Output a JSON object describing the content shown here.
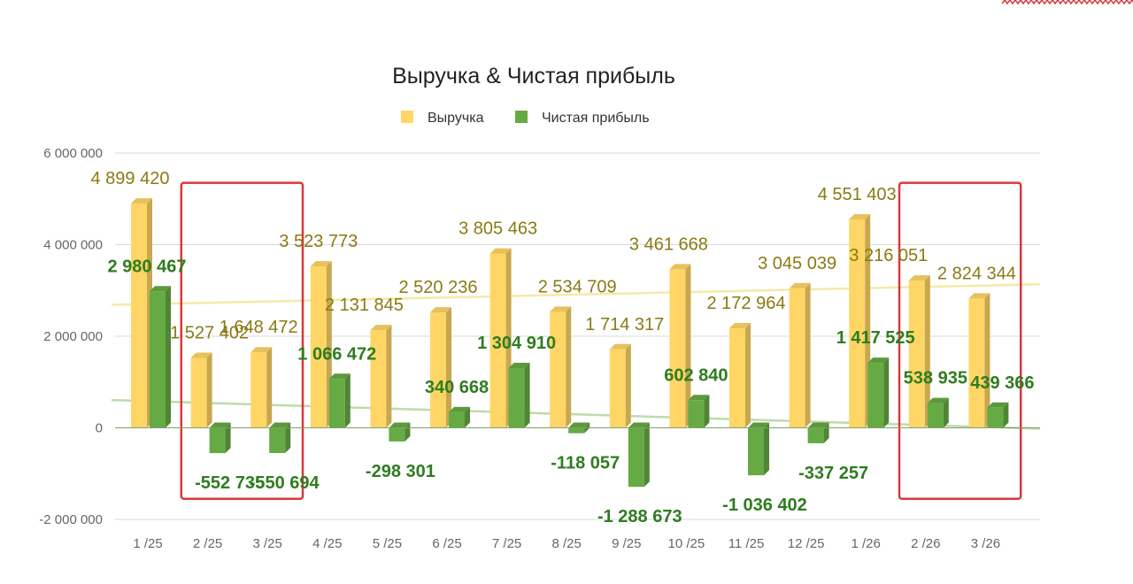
{
  "chart_data": {
    "type": "bar",
    "title": "Выручка & Чистая прибыль",
    "categories": [
      "1 /25",
      "2 /25",
      "3 /25",
      "4 /25",
      "5 /25",
      "6 /25",
      "7 /25",
      "8 /25",
      "9 /25",
      "10 /25",
      "11 /25",
      "12 /25",
      "1 /26",
      "2 /26",
      "3 /26"
    ],
    "series": [
      {
        "name": "Выручка",
        "color": "#ffd666",
        "values": [
          4899420,
          1527402,
          1648472,
          3523773,
          2131845,
          2520236,
          3805463,
          2534709,
          1714317,
          3461668,
          2172964,
          3045039,
          4551403,
          3216051,
          2824344
        ],
        "labels": [
          "4 899 420",
          "1 527 402",
          "1 648 472",
          "3 523 773",
          "2 131 845",
          "2 520 236",
          "3 805 463",
          "2 534 709",
          "1 714 317",
          "3 461 668",
          "2 172 964",
          "3 045 039",
          "4 551 403",
          "3 216 051",
          "2 824 344"
        ]
      },
      {
        "name": "Чистая прибыль",
        "color": "#66aa44",
        "values": [
          2980467,
          -552735,
          -550694,
          1066472,
          -298301,
          340668,
          1304910,
          -118057,
          -1288673,
          602840,
          -1036402,
          -337257,
          1417525,
          538935,
          439366
        ],
        "labels": [
          "2 980 467",
          "-552 735",
          "-550 694",
          "1 066 472",
          "-298 301",
          "340 668",
          "1 304 910",
          "-118 057",
          "-1 288 673",
          "602 840",
          "-1 036 402",
          "-337 257",
          "1 417 525",
          "538 935",
          "439 366"
        ]
      }
    ],
    "yticks": [
      {
        "value": 6000000,
        "label": "6 000 000"
      },
      {
        "value": 4000000,
        "label": "4 000 000"
      },
      {
        "value": 2000000,
        "label": "2 000 000"
      },
      {
        "value": 0,
        "label": "0"
      },
      {
        "value": -2000000,
        "label": "-2 000 000"
      }
    ],
    "ylim": [
      -2000000,
      6000000
    ],
    "grid": true,
    "legend_position": "top",
    "trendlines": true,
    "highlighted_groups": [
      [
        "2 /25",
        "3 /25"
      ],
      [
        "2 /26",
        "3 /26"
      ]
    ],
    "highlight_color": "#d9383a"
  }
}
